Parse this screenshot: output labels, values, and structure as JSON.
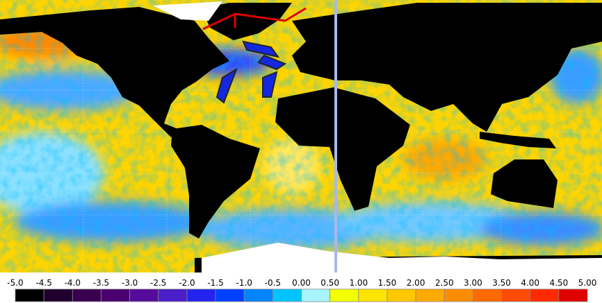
{
  "colorbar": {
    "labels": [
      "-5.0",
      "-4.5",
      "-4.0",
      "-3.5",
      "-3.0",
      "-2.5",
      "-2.0",
      "-1.5",
      "-1.0",
      "-0.5",
      "0.00",
      "0.50",
      "1.00",
      "1.50",
      "2.00",
      "2.50",
      "3.00",
      "3.50",
      "4.00",
      "4.50",
      "5.00"
    ],
    "colors": [
      "#000000",
      "#20002e",
      "#38004f",
      "#4a006e",
      "#560c9a",
      "#4a1ec8",
      "#2424f0",
      "#0040ff",
      "#0084ff",
      "#00c4ff",
      "#a8f4ff",
      "#f4ff00",
      "#ffe400",
      "#ffc800",
      "#ffaa00",
      "#ff8c00",
      "#ff6a00",
      "#ff4a00",
      "#ff2a00",
      "#e00000"
    ]
  }
}
